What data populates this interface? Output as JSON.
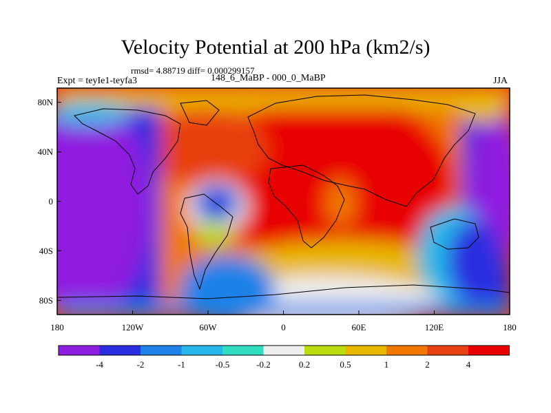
{
  "chart_data": {
    "type": "heatmap",
    "title": "Velocity Potential at 200 hPa (km2/s)",
    "stats_line": "rmsd= 4.88719 diff= 0.000299157",
    "left_label": "Expt = teyIe1-teyfa3",
    "center_label": "148_6_MaBP - 000_0_MaBP",
    "right_label": "JJA",
    "x_axis": {
      "ticks": [
        -180,
        -120,
        -60,
        0,
        60,
        120,
        180
      ],
      "tick_labels": [
        "180",
        "120W",
        "60W",
        "0",
        "60E",
        "120E",
        "180"
      ],
      "range": [
        -180,
        180
      ]
    },
    "y_axis": {
      "ticks": [
        80,
        40,
        0,
        -40,
        -80
      ],
      "tick_labels": [
        "80N",
        "40N",
        "0",
        "40S",
        "80S"
      ],
      "range": [
        -90,
        90
      ]
    },
    "colorbar": {
      "levels": [
        -4,
        -2,
        -1,
        -0.5,
        -0.2,
        0.2,
        0.5,
        1,
        2,
        4
      ],
      "level_labels": [
        "-4",
        "-2",
        "-1",
        "-0.5",
        "-0.2",
        "0.2",
        "0.5",
        "1",
        "2",
        "4"
      ],
      "colors": [
        "#8f1fe0",
        "#2a2ee0",
        "#1f82e8",
        "#26b8e8",
        "#30ddc0",
        "#efefef",
        "#b8dc10",
        "#e8b800",
        "#f07800",
        "#e84010",
        "#e80000"
      ]
    }
  }
}
